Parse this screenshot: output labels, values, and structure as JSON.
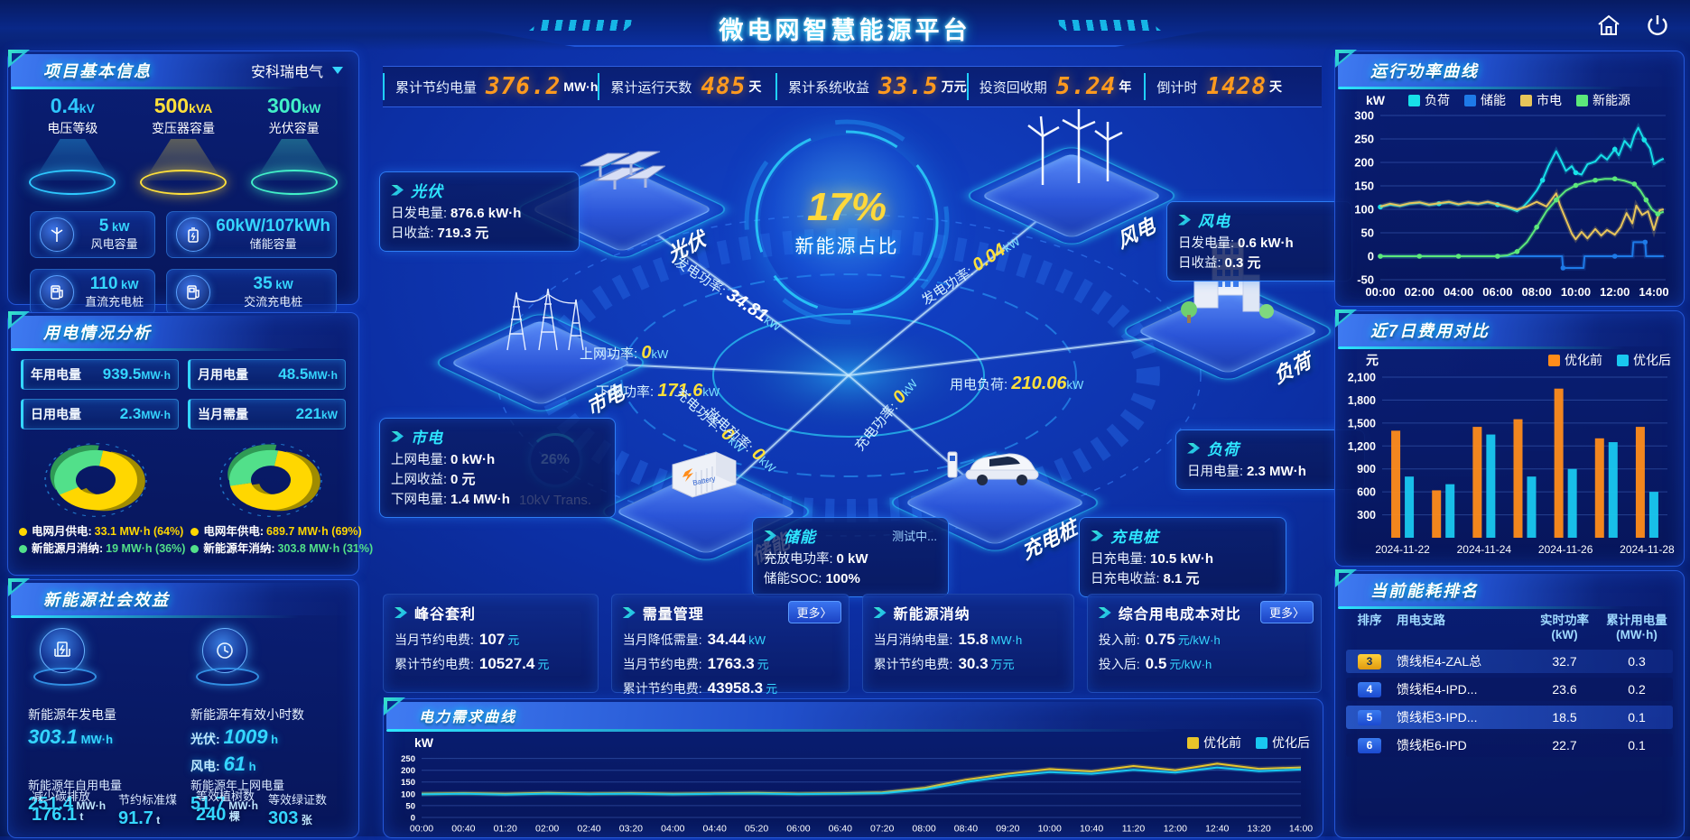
{
  "colors": {
    "accent_cyan": "#00d8ff",
    "accent_yellow": "#ffd83a",
    "accent_orange": "#ff9a1e",
    "accent_green": "#52e08a",
    "optimize_before": "#ff8c1a",
    "optimize_after": "#19c8f0"
  },
  "header": {
    "title": "微电网智慧能源平台"
  },
  "kpi_bar": [
    {
      "label": "累计节约电量",
      "value": "376.2",
      "unit": "MW·h"
    },
    {
      "label": "累计运行天数",
      "value": "485",
      "unit": "天"
    },
    {
      "label": "累计系统收益",
      "value": "33.5",
      "unit": "万元"
    },
    {
      "label": "投资回收期",
      "value": "5.24",
      "unit": "年"
    },
    {
      "label": "倒计时",
      "value": "1428",
      "unit": "天"
    }
  ],
  "project_info": {
    "title": "项目基本信息",
    "selector": "安科瑞电气",
    "spotlights": [
      {
        "value": "0.4",
        "unit": "kV",
        "label": "电压等级",
        "color": "#2ec8ff"
      },
      {
        "value": "500",
        "unit": "kVA",
        "label": "变压器容量",
        "color": "#ffe03a"
      },
      {
        "value": "300",
        "unit": "kW",
        "label": "光伏容量",
        "color": "#42f0c8"
      }
    ],
    "capacity_cards": [
      {
        "value": "5",
        "unit": "kW",
        "label": "风电容量",
        "icon": "wind-turbine-icon"
      },
      {
        "value": "60kW/107kWh",
        "unit": "",
        "label": "储能容量",
        "icon": "battery-icon"
      },
      {
        "value": "110",
        "unit": "kW",
        "label": "直流充电桩",
        "icon": "dc-charger-icon"
      },
      {
        "value": "35",
        "unit": "kW",
        "label": "交流充电桩",
        "icon": "ac-charger-icon"
      }
    ]
  },
  "power_analysis": {
    "title": "用电情况分析",
    "stats": [
      {
        "label": "年用电量",
        "value": "939.5",
        "unit": "MW·h"
      },
      {
        "label": "月用电量",
        "value": "48.5",
        "unit": "MW·h"
      },
      {
        "label": "日用电量",
        "value": "2.3",
        "unit": "MW·h"
      },
      {
        "label": "当月需量",
        "value": "221",
        "unit": "kW"
      }
    ],
    "donuts": [
      {
        "values": [
          64,
          36
        ],
        "colors": [
          "#ffd700",
          "#52e08a"
        ],
        "legend": [
          {
            "label": "电网月供电:",
            "value": "33.1 MW·h (64%)",
            "color": "#ffd700"
          },
          {
            "label": "新能源月消纳:",
            "value": "19 MW·h (36%)",
            "color": "#52e08a"
          }
        ]
      },
      {
        "values": [
          69,
          31
        ],
        "colors": [
          "#ffd700",
          "#52e08a"
        ],
        "legend": [
          {
            "label": "电网年供电:",
            "value": "689.7 MW·h (69%)",
            "color": "#ffd700"
          },
          {
            "label": "新能源年消纳:",
            "value": "303.8 MW·h (31%)",
            "color": "#52e08a"
          }
        ]
      }
    ]
  },
  "social_benefit": {
    "title": "新能源社会效益",
    "gen": {
      "label": "新能源年发电量",
      "value": "303.1",
      "unit": "MW·h"
    },
    "hours": {
      "label": "新能源年有效小时数",
      "pv_label": "光伏:",
      "pv_value": "1009",
      "pv_unit": "h",
      "wind_label": "风电:",
      "wind_value": "61",
      "wind_unit": "h"
    },
    "overlap_stats": [
      {
        "label": "新能源年自用电量",
        "value": "251.4",
        "unit": "MW·h"
      },
      {
        "label": "新能源年上网电量",
        "value": "51.7",
        "unit": "MW·h"
      },
      {
        "label": "减少碳排放",
        "value": "176.1",
        "unit": "t"
      },
      {
        "label": "节约标准煤",
        "value": "91.7",
        "unit": "t"
      },
      {
        "label": "等效植树数",
        "value": "240",
        "unit": "棵"
      },
      {
        "label": "等效绿证数",
        "value": "303",
        "unit": "张"
      }
    ]
  },
  "scene": {
    "center_percent": "17%",
    "center_label": "新能源占比",
    "transformer_percent": "26%",
    "transformer_label": "10kV Trans.",
    "platforms": [
      {
        "key": "pv",
        "label": "光伏"
      },
      {
        "key": "grid",
        "label": "市电"
      },
      {
        "key": "storage",
        "label": "储能"
      },
      {
        "key": "wind",
        "label": "风电"
      },
      {
        "key": "load",
        "label": "负荷"
      },
      {
        "key": "charger",
        "label": "充电桩"
      }
    ],
    "flows": [
      {
        "key": "pv-gen",
        "label": "发电功率:",
        "value": "34.81",
        "unit": "kW",
        "value_color": "#ffffff"
      },
      {
        "key": "grid-up",
        "label": "上网功率:",
        "value": "0",
        "unit": "kW",
        "value_color": "#ffe03a"
      },
      {
        "key": "grid-down",
        "label": "下网功率:",
        "value": "171.6",
        "unit": "kW",
        "value_color": "#ffe03a"
      },
      {
        "key": "wind-gen",
        "label": "发电功率:",
        "value": "0.04",
        "unit": "kW",
        "value_color": "#ffe03a"
      },
      {
        "key": "load-use",
        "label": "用电负荷:",
        "value": "210.06",
        "unit": "kW",
        "value_color": "#ffe03a"
      },
      {
        "key": "storage-charge",
        "label": "充电功率:",
        "value": "0",
        "unit": "kW",
        "value_color": "#ffe03a"
      },
      {
        "key": "storage-discharge",
        "label": "放电功率:",
        "value": "0",
        "unit": "kW",
        "value_color": "#ffe03a"
      },
      {
        "key": "charger-charge",
        "label": "充电功率:",
        "value": "0",
        "unit": "kW",
        "value_color": "#ffe03a"
      }
    ],
    "info_boxes": {
      "pv": {
        "title": "光伏",
        "rows": [
          [
            "日发电量:",
            "876.6 kW·h"
          ],
          [
            "日收益:",
            "719.3 元"
          ]
        ]
      },
      "grid": {
        "title": "市电",
        "rows": [
          [
            "上网电量:",
            "0 kW·h"
          ],
          [
            "上网收益:",
            "0 元"
          ],
          [
            "下网电量:",
            "1.4 MW·h"
          ]
        ]
      },
      "storage": {
        "title": "储能",
        "badge": "测试中...",
        "rows": [
          [
            "充放电功率:",
            "0 kW"
          ],
          [
            "储能SOC:",
            "100%"
          ]
        ]
      },
      "wind": {
        "title": "风电",
        "rows": [
          [
            "日发电量:",
            "0.6 kW·h"
          ],
          [
            "日收益:",
            "0.3 元"
          ]
        ]
      },
      "load": {
        "title": "负荷",
        "rows": [
          [
            "日用电量:",
            "2.3 MW·h"
          ]
        ]
      },
      "charger": {
        "title": "充电桩",
        "rows": [
          [
            "日充电量:",
            "10.5 kW·h"
          ],
          [
            "日充电收益:",
            "8.1 元"
          ]
        ]
      }
    }
  },
  "benefit_cards": [
    {
      "title": "峰谷套利",
      "more": null,
      "rows": [
        [
          "当月节约电费:",
          "107",
          "元"
        ],
        [
          "累计节约电费:",
          "10527.4",
          "元"
        ]
      ]
    },
    {
      "title": "需量管理",
      "more": "更多〉",
      "rows": [
        [
          "当月降低需量:",
          "34.44",
          "kW"
        ],
        [
          "当月节约电费:",
          "1763.3",
          "元"
        ],
        [
          "累计节约电费:",
          "43958.3",
          "元"
        ]
      ]
    },
    {
      "title": "新能源消纳",
      "more": null,
      "rows": [
        [
          "当月消纳电量:",
          "15.8",
          "MW·h"
        ],
        [
          "累计节约电费:",
          "30.3",
          "万元"
        ]
      ]
    },
    {
      "title": "综合用电成本对比",
      "more": "更多〉",
      "rows": [
        [
          "投入前:",
          "0.75",
          "元/kW·h"
        ],
        [
          "投入后:",
          "0.5",
          "元/kW·h"
        ]
      ]
    }
  ],
  "ranking": {
    "title": "当前能耗排名",
    "columns": [
      "排序",
      "用电支路",
      "实时功率(kW)",
      "累计用电量(MW·h)"
    ],
    "rows": [
      {
        "rank": "3",
        "name": "馈线柜4-ZAL总",
        "power": "32.7",
        "energy": "0.3"
      },
      {
        "rank": "4",
        "name": "馈线柜4-IPD...",
        "power": "23.6",
        "energy": "0.2"
      },
      {
        "rank": "5",
        "name": "馈线柜3-IPD...",
        "power": "18.5",
        "energy": "0.1"
      },
      {
        "rank": "6",
        "name": "馈线柜6-IPD",
        "power": "22.7",
        "energy": "0.1"
      }
    ]
  },
  "chart_data": [
    {
      "id": "run-power",
      "type": "line",
      "title": "运行功率曲线",
      "ylabel": "kW",
      "ylim": [
        -50,
        300
      ],
      "yticks": [
        -50,
        0,
        50,
        100,
        150,
        200,
        250,
        300
      ],
      "xlim": [
        0,
        14.6
      ],
      "xticks": [
        {
          "v": 0,
          "label": "00:00"
        },
        {
          "v": 2,
          "label": "02:00"
        },
        {
          "v": 4,
          "label": "04:00"
        },
        {
          "v": 6,
          "label": "06:00"
        },
        {
          "v": 8,
          "label": "08:00"
        },
        {
          "v": 10,
          "label": "10:00"
        },
        {
          "v": 12,
          "label": "12:00"
        },
        {
          "v": 14,
          "label": "14:00"
        }
      ],
      "legend_position": "top",
      "grid": true,
      "series": [
        {
          "name": "负荷",
          "color": "#17e0e8",
          "dot_every": 6,
          "x": [
            0,
            0.5,
            1,
            1.5,
            2,
            2.5,
            3,
            3.5,
            4,
            4.5,
            5,
            5.5,
            6,
            6.5,
            7,
            7.3,
            7.6,
            8,
            8.3,
            8.6,
            9,
            9.2,
            9.5,
            9.8,
            10,
            10.3,
            10.6,
            11,
            11.3,
            11.6,
            12,
            12.2,
            12.5,
            12.8,
            13,
            13.2,
            13.5,
            13.8,
            14,
            14.3,
            14.5
          ],
          "values": [
            105,
            110,
            107,
            112,
            114,
            109,
            112,
            115,
            110,
            114,
            111,
            115,
            110,
            104,
            96,
            105,
            118,
            140,
            162,
            192,
            224,
            208,
            182,
            192,
            178,
            174,
            196,
            202,
            216,
            206,
            228,
            215,
            246,
            232,
            258,
            274,
            248,
            230,
            196,
            204,
            208
          ]
        },
        {
          "name": "储能",
          "color": "#1e7ae8",
          "dot_every": 3,
          "x": [
            0,
            2,
            4,
            6,
            8,
            9.3,
            9.35,
            10.4,
            10.45,
            12,
            12.9,
            12.95,
            13.55,
            13.6,
            14.5
          ],
          "values": [
            0,
            0,
            0,
            0,
            0,
            0,
            -25,
            -25,
            0,
            0,
            0,
            30,
            30,
            0,
            0
          ]
        },
        {
          "name": "市电",
          "color": "#e8c55a",
          "dot_every": 0,
          "x": [
            0,
            0.5,
            1,
            1.5,
            2,
            2.5,
            3,
            3.5,
            4,
            4.5,
            5,
            5.5,
            6,
            6.5,
            7,
            7.5,
            8,
            8.5,
            9,
            9.2,
            9.5,
            9.8,
            10,
            10.3,
            10.6,
            11,
            11.3,
            11.6,
            12,
            12.3,
            12.6,
            12.9,
            13.1,
            13.4,
            13.7,
            14,
            14.3,
            14.5
          ],
          "values": [
            106,
            112,
            108,
            113,
            115,
            110,
            113,
            116,
            111,
            115,
            112,
            116,
            111,
            106,
            100,
            106,
            116,
            106,
            134,
            108,
            78,
            48,
            36,
            52,
            38,
            58,
            44,
            56,
            46,
            62,
            92,
            70,
            108,
            88,
            96,
            56,
            98,
            100
          ]
        },
        {
          "name": "新能源",
          "color": "#5ce87a",
          "dot_every": 2,
          "x": [
            0,
            1,
            2,
            3,
            4,
            5,
            6,
            6.5,
            7,
            7.5,
            8,
            8.5,
            9,
            9.5,
            10,
            10.5,
            11,
            11.5,
            12,
            12.5,
            13,
            13.3,
            13.6,
            13.9,
            14.2,
            14.5
          ],
          "values": [
            0,
            0,
            0,
            0,
            0,
            0,
            0,
            2,
            10,
            30,
            62,
            96,
            120,
            140,
            151,
            158,
            162,
            165,
            165,
            161,
            154,
            140,
            120,
            100,
            90,
            95
          ]
        }
      ]
    },
    {
      "id": "cost-compare",
      "type": "bar",
      "title": "近7日费用对比",
      "ylabel": "元",
      "ylim": [
        0,
        2100
      ],
      "yticks": [
        {
          "v": 300,
          "label": "300"
        },
        {
          "v": 600,
          "label": "600"
        },
        {
          "v": 900,
          "label": "900"
        },
        {
          "v": 1200,
          "label": "1,200"
        },
        {
          "v": 1500,
          "label": "1,500"
        },
        {
          "v": 1800,
          "label": "1,800"
        },
        {
          "v": 2100,
          "label": "2,100"
        }
      ],
      "categories": [
        "2024-11-22",
        "2024-11-23",
        "2024-11-24",
        "2024-11-25",
        "2024-11-26",
        "2024-11-27",
        "2024-11-28"
      ],
      "xtick_shown": [
        "2024-11-22",
        "2024-11-24",
        "2024-11-26",
        "2024-11-28"
      ],
      "legend_position": "top-right",
      "grid": true,
      "series": [
        {
          "name": "优化前",
          "color": "#ff8c1a",
          "values": [
            1400,
            620,
            1450,
            1550,
            1950,
            1300,
            1450
          ]
        },
        {
          "name": "优化后",
          "color": "#19c8f0",
          "values": [
            800,
            700,
            1350,
            800,
            900,
            1250,
            600
          ]
        }
      ]
    },
    {
      "id": "power-demand",
      "type": "line",
      "title": "电力需求曲线",
      "ylabel": "kW",
      "ylim": [
        0,
        260
      ],
      "yticks": [
        0,
        50,
        100,
        150,
        200,
        250
      ],
      "xlim": [
        0,
        21
      ],
      "xticks_labels": [
        "00:00",
        "00:40",
        "01:20",
        "02:00",
        "02:40",
        "03:20",
        "04:00",
        "04:40",
        "05:20",
        "06:00",
        "06:40",
        "07:20",
        "08:00",
        "08:40",
        "09:20",
        "10:00",
        "10:40",
        "11:20",
        "12:00",
        "12:40",
        "13:20",
        "14:00"
      ],
      "legend_position": "top-right",
      "grid": true,
      "series": [
        {
          "name": "优化前",
          "color": "#e8c52a",
          "values": [
            100,
            103,
            100,
            104,
            101,
            103,
            100,
            102,
            104,
            101,
            103,
            106,
            125,
            160,
            185,
            205,
            195,
            218,
            200,
            228,
            206,
            212
          ]
        },
        {
          "name": "优化后",
          "color": "#19c8f0",
          "values": [
            98,
            100,
            97,
            101,
            99,
            100,
            98,
            100,
            101,
            99,
            100,
            103,
            118,
            150,
            175,
            192,
            185,
            202,
            190,
            212,
            196,
            203
          ]
        }
      ]
    }
  ]
}
